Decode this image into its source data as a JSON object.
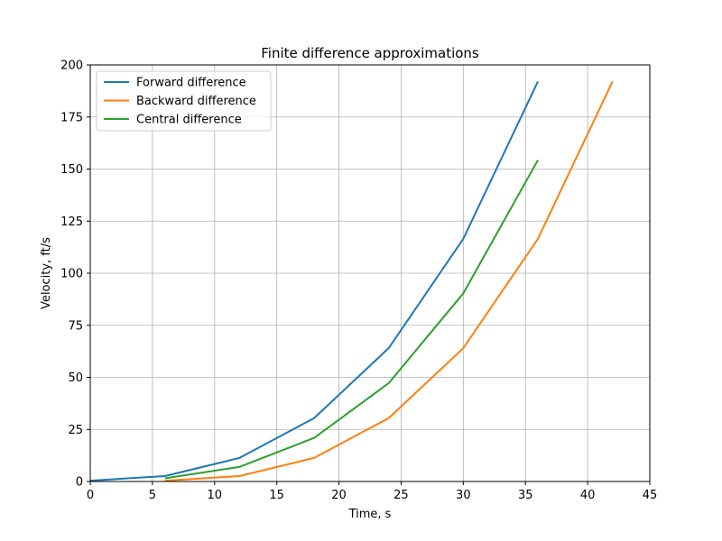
{
  "chart_data": {
    "type": "line",
    "title": "Finite difference approximations",
    "xlabel": "Time, s",
    "ylabel": "Velocity, ft/s",
    "xlim": [
      0,
      45
    ],
    "ylim": [
      0,
      200
    ],
    "xticks": [
      0,
      5,
      10,
      15,
      20,
      25,
      30,
      35,
      40,
      45
    ],
    "yticks": [
      0,
      25,
      50,
      75,
      100,
      125,
      150,
      175,
      200
    ],
    "grid": true,
    "legend_position": "top-left",
    "series": [
      {
        "name": "Forward difference",
        "color": "#1f77b4",
        "x": [
          0,
          6,
          12,
          18,
          24,
          30,
          36
        ],
        "y": [
          0.4,
          2.6,
          11.3,
          30.4,
          64.0,
          116.5,
          192.0
        ]
      },
      {
        "name": "Backward difference",
        "color": "#ff7f0e",
        "x": [
          6,
          12,
          18,
          24,
          30,
          36,
          42
        ],
        "y": [
          0.4,
          2.6,
          11.3,
          30.4,
          64.0,
          116.5,
          192.0
        ]
      },
      {
        "name": "Central difference",
        "color": "#2ca02c",
        "x": [
          6,
          12,
          18,
          24,
          30,
          36
        ],
        "y": [
          1.5,
          7.0,
          20.9,
          47.2,
          90.3,
          154.3
        ]
      }
    ]
  }
}
